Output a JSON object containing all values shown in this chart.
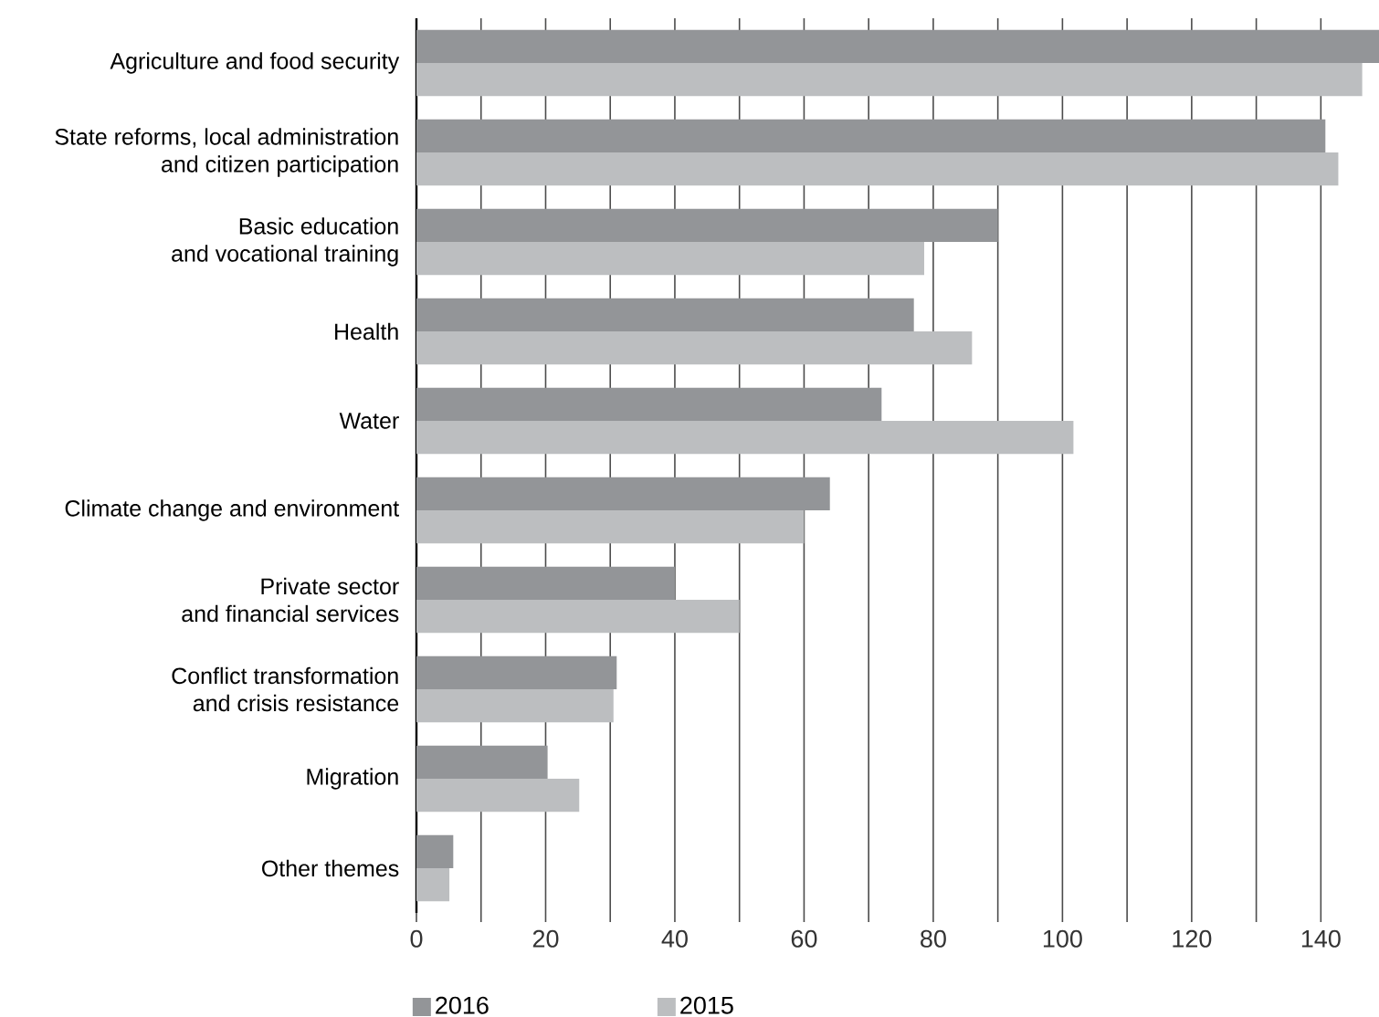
{
  "chart_data": {
    "type": "bar",
    "orientation": "horizontal",
    "categories": [
      "Agriculture and food security",
      "State reforms, local administration\nand citizen participation",
      "Basic education\nand vocational training",
      "Health",
      "Water",
      "Climate change and environment",
      "Private sector\nand financial services",
      "Conflict transformation\nand crisis resistance",
      "Migration",
      "Other themes"
    ],
    "series": [
      {
        "name": "2016",
        "color": "#939598",
        "values": [
          149,
          140.7,
          90,
          77,
          72,
          64,
          40,
          31,
          20.3,
          5.7
        ]
      },
      {
        "name": "2015",
        "color": "#bcbec0",
        "values": [
          146.4,
          142.7,
          78.6,
          86,
          101.7,
          60,
          50,
          30.5,
          25.2,
          5.1
        ]
      }
    ],
    "xlim": [
      0,
      149
    ],
    "xticks": [
      0,
      {
        "value": 10,
        "label": null
      },
      20,
      {
        "value": 30,
        "label": null
      },
      40,
      {
        "value": 50,
        "label": null
      },
      60,
      {
        "value": 70,
        "label": null
      },
      80,
      {
        "value": 90,
        "label": null
      },
      100,
      {
        "value": 110,
        "label": null
      },
      120,
      {
        "value": 130,
        "label": null
      },
      140
    ],
    "grid": "x",
    "legend": "bottom left"
  }
}
